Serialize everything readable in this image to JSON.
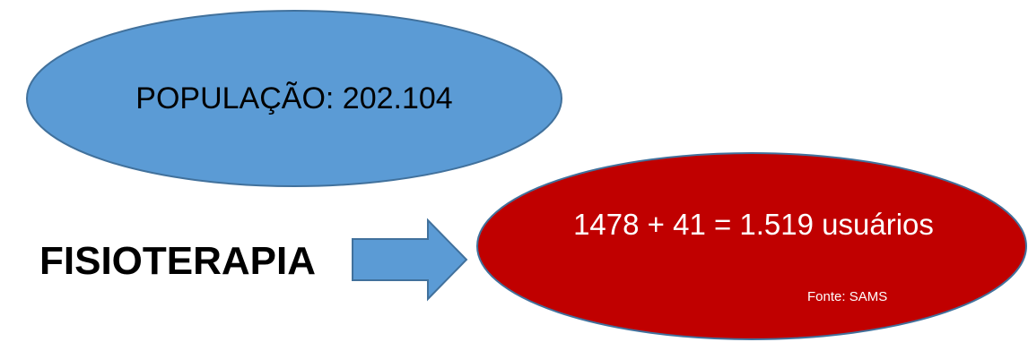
{
  "diagram": {
    "population_label": "POPULAÇÃO: 202.104",
    "service_label": "FISIOTERAPIA",
    "users_label": "1478 + 41 = 1.519 usuários",
    "source_label": "Fonte: SAMS"
  },
  "colors": {
    "population_fill": "#5b9bd5",
    "population_stroke": "#41719c",
    "arrow_fill": "#5b9bd5",
    "users_fill": "#c00000",
    "users_stroke": "#41719c",
    "label_text": "#000000",
    "users_text": "#ffffff"
  }
}
